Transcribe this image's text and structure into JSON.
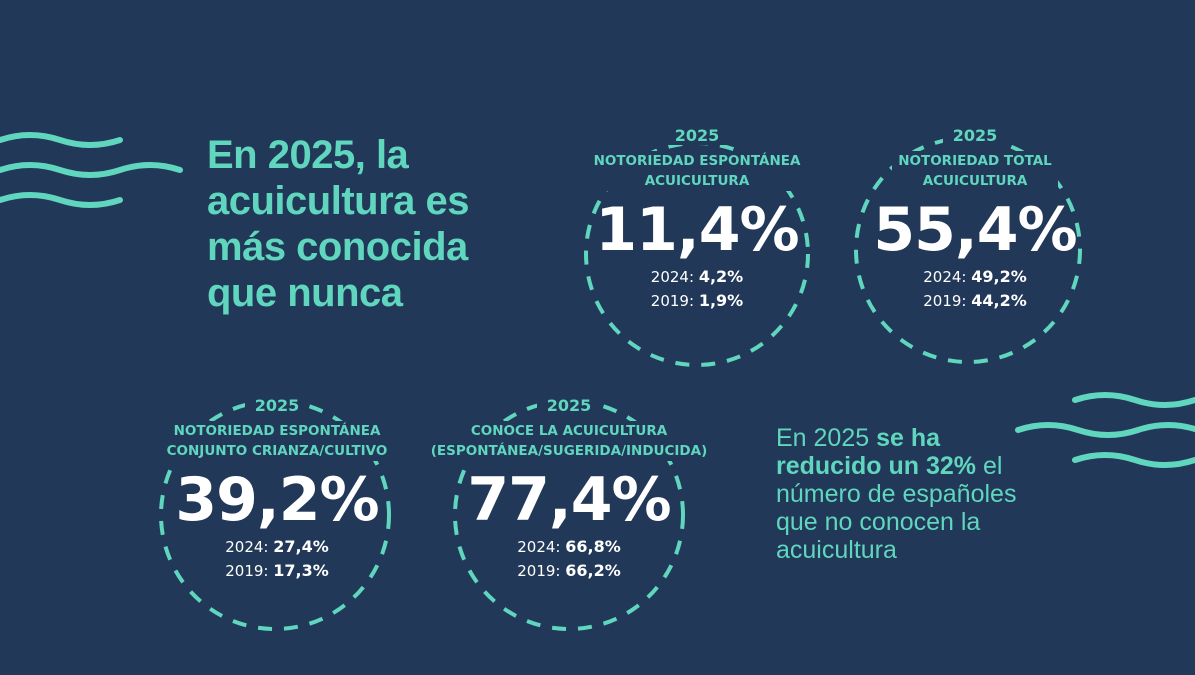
{
  "colors": {
    "background": "#223858",
    "accent": "#5fd6bd",
    "text": "#ffffff"
  },
  "headline": "En 2025, la acuicultura es más conocida que nunca",
  "stats": [
    {
      "year": "2025",
      "label_lines": [
        "NOTORIEDAD ESPONTÁNEA",
        "ACUICULTURA"
      ],
      "value": "11,4%",
      "history": [
        {
          "year": "2024:",
          "value": "4,2%"
        },
        {
          "year": "2019:",
          "value": "1,9%"
        }
      ]
    },
    {
      "year": "2025",
      "label_lines": [
        "NOTORIEDAD TOTAL",
        "ACUICULTURA"
      ],
      "value": "55,4%",
      "history": [
        {
          "year": "2024:",
          "value": "49,2%"
        },
        {
          "year": "2019:",
          "value": "44,2%"
        }
      ]
    },
    {
      "year": "2025",
      "label_lines": [
        "NOTORIEDAD ESPONTÁNEA",
        "CONJUNTO CRIANZA/CULTIVO"
      ],
      "value": "39,2%",
      "history": [
        {
          "year": "2024:",
          "value": "27,4%"
        },
        {
          "year": "2019:",
          "value": "17,3%"
        }
      ]
    },
    {
      "year": "2025",
      "label_lines": [
        "CONOCE LA ACUICULTURA",
        "(ESPONTÁNEA/SUGERIDA/INDUCIDA)"
      ],
      "value": "77,4%",
      "history": [
        {
          "year": "2024:",
          "value": "66,8%"
        },
        {
          "year": "2019:",
          "value": "66,2%"
        }
      ]
    }
  ],
  "note": {
    "prefix": "En 2025 ",
    "highlight": "se ha reducido un 32%",
    "suffix": " el número de españoles que no conocen la acuicultura"
  },
  "icons": {
    "decoration": "wave-lines-icon"
  }
}
